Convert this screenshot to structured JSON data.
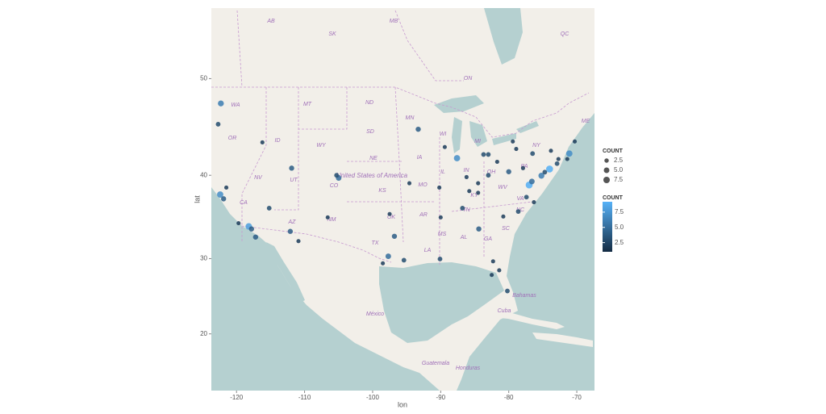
{
  "chart_data": {
    "type": "scatter",
    "x_label": "lon",
    "y_label": "lat",
    "projection": "mercator",
    "xlim": [
      -123.7,
      -67.4
    ],
    "ylim": [
      12,
      56.1
    ],
    "xticks": [
      -120,
      -110,
      -100,
      -90,
      -80,
      -70
    ],
    "yticks": [
      20,
      30,
      40,
      50
    ],
    "color_low": "#132B43",
    "color_high": "#56B1F7",
    "color_range": [
      1,
      9.2
    ],
    "size_legend": {
      "title": "COUNT",
      "values": [
        2.5,
        {
          "value": 5,
          "label": "5.0"
        },
        7.5
      ]
    },
    "color_legend": {
      "title": "COUNT",
      "values": [
        7.5,
        {
          "value": 5,
          "label": "5.0"
        },
        2.5
      ]
    },
    "series": [
      {
        "name": "COUNT",
        "x": [
          -122.3,
          -122.7,
          -122.4,
          -121.9,
          -118.2,
          -117.2,
          -115.2,
          -112.1,
          -110.9,
          -111.9,
          -104.99,
          -105.3,
          -106.6,
          -97.7,
          -96.8,
          -95.4,
          -98.5,
          -97.5,
          -94.6,
          -90.2,
          -93.3,
          -87.6,
          -89.4,
          -83.0,
          -83.7,
          -83.0,
          -81.7,
          -80.0,
          -86.2,
          -86.8,
          -84.4,
          -78.6,
          -80.8,
          -77.0,
          -76.6,
          -75.2,
          -74.0,
          -71.1,
          -71.4,
          -72.7,
          -73.8,
          -72.9,
          -74.7,
          -78.9,
          -79.4,
          -80.2,
          -82.5,
          -81.4,
          -82.3,
          -90.1,
          -90.0,
          -77.4,
          -70.3,
          -84.5,
          -85.8,
          -84.5,
          -76.5,
          -77.9,
          -76.3,
          -116.2,
          -121.5,
          -119.7,
          -117.8
        ],
        "y": [
          47.6,
          45.5,
          37.8,
          37.3,
          34.0,
          32.7,
          36.2,
          33.4,
          32.2,
          40.8,
          39.7,
          40.0,
          35.1,
          30.3,
          32.8,
          29.8,
          29.4,
          35.5,
          39.1,
          38.6,
          44.98,
          41.9,
          43.1,
          42.3,
          42.3,
          40.0,
          41.5,
          40.4,
          39.8,
          36.2,
          33.7,
          35.8,
          35.2,
          38.9,
          39.3,
          39.95,
          40.7,
          42.4,
          41.8,
          41.8,
          42.7,
          41.3,
          40.35,
          42.9,
          43.7,
          25.8,
          27.9,
          28.5,
          29.65,
          29.95,
          35.1,
          37.5,
          43.7,
          39.1,
          38.2,
          38.0,
          42.4,
          40.8,
          36.9,
          43.6,
          38.6,
          34.4,
          33.7
        ],
        "values": [
          6,
          3,
          7,
          4,
          8,
          4,
          3,
          4,
          2,
          4,
          5,
          3,
          2,
          5,
          4,
          3,
          2,
          2,
          2,
          2,
          4,
          7,
          2,
          3,
          3,
          3,
          2,
          4,
          2,
          3,
          4,
          3,
          2,
          9,
          5,
          6,
          9,
          7,
          2,
          2,
          2,
          3,
          3,
          2,
          2,
          3,
          2,
          2,
          2,
          3,
          2,
          3,
          2,
          2,
          2,
          2,
          3,
          2,
          2,
          2,
          2,
          2,
          4
        ]
      }
    ]
  },
  "map_labels": [
    "AB",
    "SK",
    "MB",
    "ON",
    "QC",
    "WA",
    "MT",
    "ND",
    "MN",
    "OR",
    "ID",
    "SD",
    "WY",
    "NE",
    "NV",
    "UT",
    "CO",
    "KS",
    "MO",
    "IL",
    "IN",
    "OH",
    "PA",
    "NY",
    "CA",
    "AZ",
    "NM",
    "OK",
    "AR",
    "TN",
    "TX",
    "LA",
    "MS",
    "AL",
    "GA",
    "SC",
    "NC",
    "VA",
    "KY",
    "WV",
    "MI",
    "WI",
    "IA",
    "ME",
    "United States of America",
    "México",
    "Cuba",
    "Bahamas",
    "Guatemala",
    "Honduras"
  ]
}
